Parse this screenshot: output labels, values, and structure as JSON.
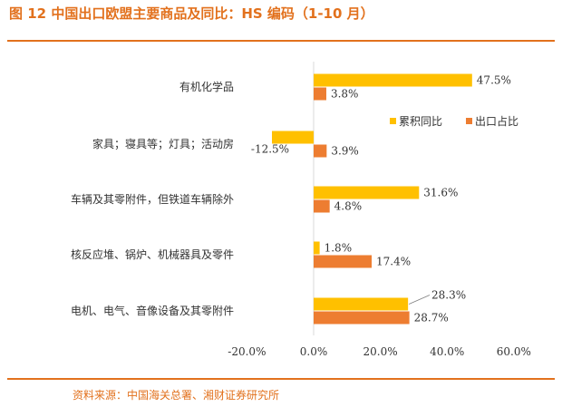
{
  "title": "图 12 中国出口欧盟主要商品及同比：HS 编码（1-10 月）",
  "source": "资料来源：中国海关总署、湘财证券研究所",
  "colors": {
    "series1": "#ffc000",
    "series2": "#ed7d31",
    "accent": "#e2711d",
    "axis": "#d9d9d9",
    "text": "#333333"
  },
  "chart_data": {
    "type": "bar",
    "orientation": "horizontal",
    "categories": [
      "有机化学品",
      "家具；寝具等；灯具；活动房",
      "车辆及其零附件，但铁道车辆除外",
      "核反应堆、锅炉、机械器具及零件",
      "电机、电气、音像设备及其零附件"
    ],
    "series": [
      {
        "name": "累积同比",
        "values": [
          47.5,
          -12.5,
          31.6,
          1.8,
          28.3
        ]
      },
      {
        "name": "出口占比",
        "values": [
          3.8,
          3.9,
          4.8,
          17.4,
          28.7
        ]
      }
    ],
    "value_labels": [
      [
        "47.5%",
        "-12.5%",
        "31.6%",
        "1.8%",
        "28.3%"
      ],
      [
        "3.8%",
        "3.9%",
        "4.8%",
        "17.4%",
        "28.7%"
      ]
    ],
    "xlim": [
      -20,
      60
    ],
    "xticks": [
      -20,
      0,
      20,
      40,
      60
    ],
    "xtick_labels": [
      "-20.0%",
      "0.0%",
      "20.0%",
      "40.0%",
      "60.0%"
    ],
    "legend_position": "right",
    "grid": false
  }
}
